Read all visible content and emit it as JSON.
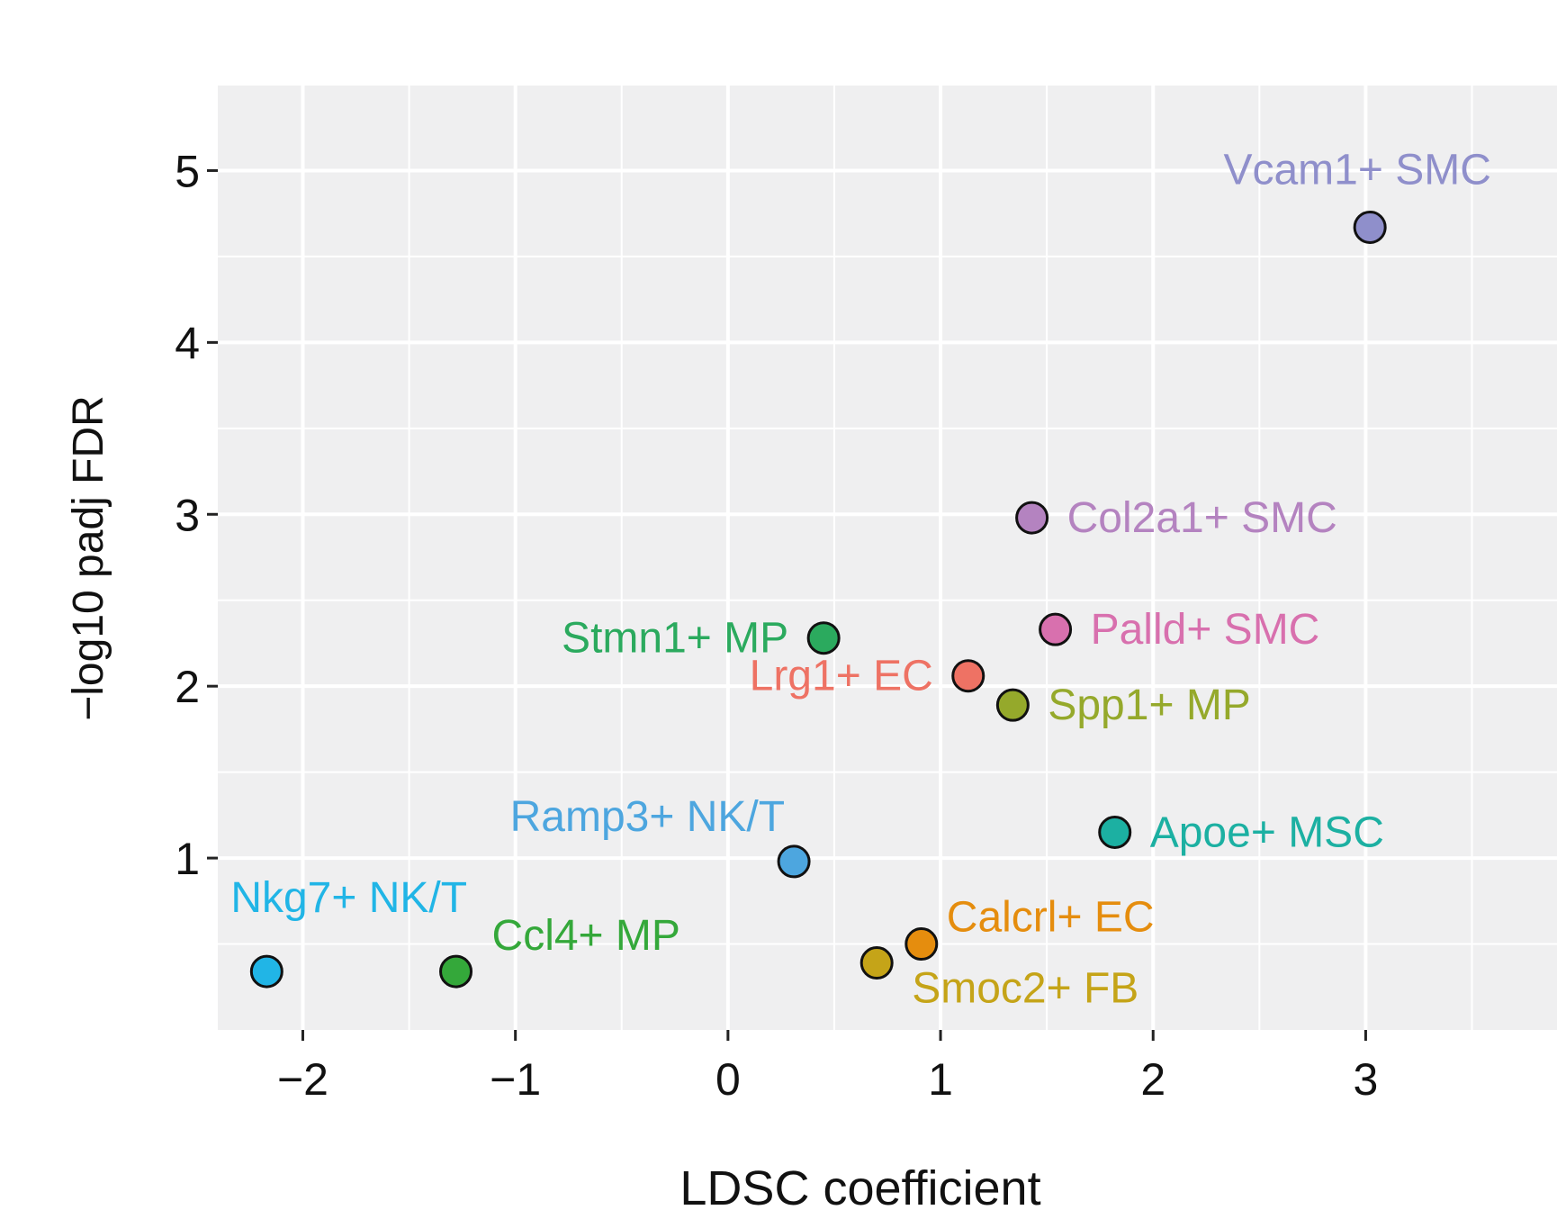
{
  "chart_data": {
    "type": "scatter",
    "title": "",
    "xlabel": "LDSC coefficient",
    "ylabel": "−log10 padj FDR",
    "xlim": [
      -2.4,
      3.9
    ],
    "ylim": [
      0.0,
      5.5
    ],
    "x_ticks": [
      -2,
      -1,
      0,
      1,
      2,
      3
    ],
    "x_tick_labels": [
      "−2",
      "−1",
      "0",
      "1",
      "2",
      "3"
    ],
    "y_ticks": [
      1,
      2,
      3,
      4,
      5
    ],
    "y_tick_labels": [
      "1",
      "2",
      "3",
      "4",
      "5"
    ],
    "grid": true,
    "points": [
      {
        "label": "Vcam1+ SMC",
        "x": 3.02,
        "y": 4.67,
        "color": "#8F8FCB",
        "label_pos": "above"
      },
      {
        "label": "Col2a1+ SMC",
        "x": 1.43,
        "y": 2.98,
        "color": "#B483C0",
        "label_pos": "right"
      },
      {
        "label": "Palld+ SMC",
        "x": 1.54,
        "y": 2.33,
        "color": "#D870AE",
        "label_pos": "right"
      },
      {
        "label": "Stmn1+ MP",
        "x": 0.45,
        "y": 2.28,
        "color": "#2BAA5E",
        "label_pos": "left"
      },
      {
        "label": "Lrg1+ EC",
        "x": 1.13,
        "y": 2.06,
        "color": "#EE7264",
        "label_pos": "left"
      },
      {
        "label": "Spp1+ MP",
        "x": 1.34,
        "y": 1.89,
        "color": "#95A92B",
        "label_pos": "right"
      },
      {
        "label": "Apoe+ MSC",
        "x": 1.82,
        "y": 1.15,
        "color": "#1CB0A2",
        "label_pos": "right"
      },
      {
        "label": "Ramp3+ NK/T",
        "x": 0.31,
        "y": 0.98,
        "color": "#4DA6DF",
        "label_pos": "above-left"
      },
      {
        "label": "Nkg7+ NK/T",
        "x": -2.17,
        "y": 0.34,
        "color": "#21B5E6",
        "label_pos": "above-right"
      },
      {
        "label": "Ccl4+ MP",
        "x": -1.28,
        "y": 0.34,
        "color": "#34A83A",
        "label_pos": "above-right"
      },
      {
        "label": "Calcrl+ EC",
        "x": 0.91,
        "y": 0.5,
        "color": "#E58D0E",
        "label_pos": "above-right"
      },
      {
        "label": "Smoc2+ FB",
        "x": 0.7,
        "y": 0.39,
        "color": "#C5A418",
        "label_pos": "below-right"
      }
    ]
  }
}
